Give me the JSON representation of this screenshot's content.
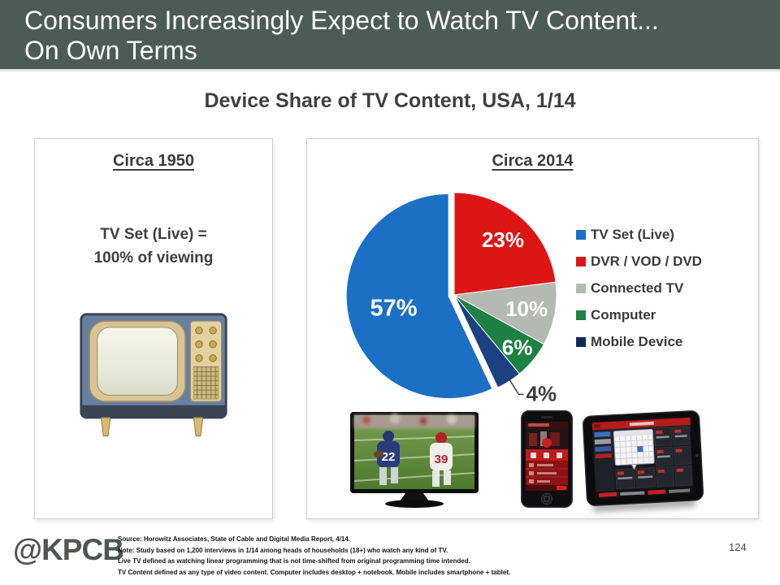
{
  "header": {
    "title_line1": "Consumers Increasingly Expect to Watch TV Content...",
    "title_line2": "On Own Terms"
  },
  "subtitle": "Device Share of TV Content, USA, 1/14",
  "left_panel": {
    "heading": "Circa 1950",
    "line1": "TV Set (Live) =",
    "line2": "100% of viewing",
    "image": "vintage-tv"
  },
  "right_panel": {
    "heading": "Circa 2014",
    "images": [
      "flatscreen-tv-football",
      "smartphone-video-app",
      "tablet-video-app"
    ]
  },
  "chart_data": {
    "type": "pie",
    "title": "Device Share of TV Content, USA, 1/14",
    "values_unit": "% of TV content viewing",
    "start_angle_deg": 0,
    "direction": "clockwise",
    "legend_position": "right",
    "slices": [
      {
        "id": "tv-set-live",
        "label": "TV Set (Live)",
        "value": 57,
        "pct_label": "57%",
        "color": "#1b6fc4",
        "exploded": true,
        "label_r": 0.55,
        "label_size": 29
      },
      {
        "id": "dvr-vod-dvd",
        "label": "DVR / VOD / DVD",
        "value": 23,
        "pct_label": "23%",
        "color": "#dd1515",
        "label_r": 0.72,
        "label_size": 26
      },
      {
        "id": "connected-tv",
        "label": "Connected TV",
        "value": 10,
        "pct_label": "10%",
        "color": "#b4b9b4",
        "label_r": 0.72,
        "label_size": 26
      },
      {
        "id": "computer",
        "label": "Computer",
        "value": 6,
        "pct_label": "6%",
        "color": "#1e8043",
        "label_r": 0.8,
        "label_size": 26
      },
      {
        "id": "mobile-device",
        "label": "Mobile Device",
        "value": 4,
        "pct_label": "4%",
        "color": "#1a4180",
        "legend_color": "#122a56",
        "label_outside": true,
        "label_size": 26
      }
    ],
    "draw_order": [
      1,
      2,
      3,
      4,
      0
    ]
  },
  "footer": {
    "logo": "@KPCB",
    "source_lines": [
      "Source: Horowitz Associates, State of Cable and Digital Media Report, 4/14.",
      "Note: Study based on 1,200 interviews in 1/14 among heads of households (18+) who watch any kind of TV.",
      "Live TV defined as watching linear programming that is not time-shifted from original programming time intended.",
      "TV Content defined as any type of video content. Computer includes desktop + notebook. Mobile includes smartphone + tablet."
    ],
    "page_number": "124"
  },
  "colors": {
    "header_bg": "#4c5b55",
    "header_text": "#ffffff",
    "body_text": "#3f3f3f",
    "panel_border": "#c9cdcc"
  }
}
